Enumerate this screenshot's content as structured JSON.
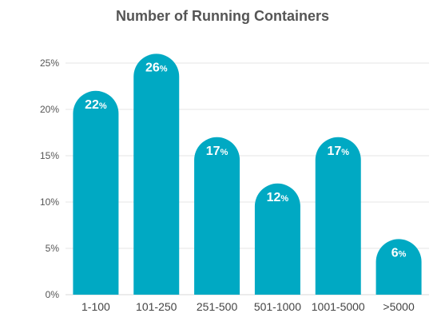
{
  "colors": {
    "bar": "#00a9c3",
    "grid": "#e6e6e6",
    "axis": "#d9d9d9"
  },
  "chart_data": {
    "type": "bar",
    "title": "Number of Running Containers",
    "xlabel": "",
    "ylabel": "",
    "categories": [
      "1-100",
      "101-250",
      "251-500",
      "501-1000",
      "1001-5000",
      ">5000"
    ],
    "values": [
      22,
      26,
      17,
      12,
      17,
      6
    ],
    "data_labels": [
      "22%",
      "26%",
      "17%",
      "12%",
      "17%",
      "6%"
    ],
    "yticks": [
      0,
      5,
      10,
      15,
      20,
      25
    ],
    "ytick_labels": [
      "0%",
      "5%",
      "10%",
      "15%",
      "20%",
      "25%"
    ],
    "ylim": [
      0,
      25
    ],
    "grid": true,
    "legend": "none"
  }
}
